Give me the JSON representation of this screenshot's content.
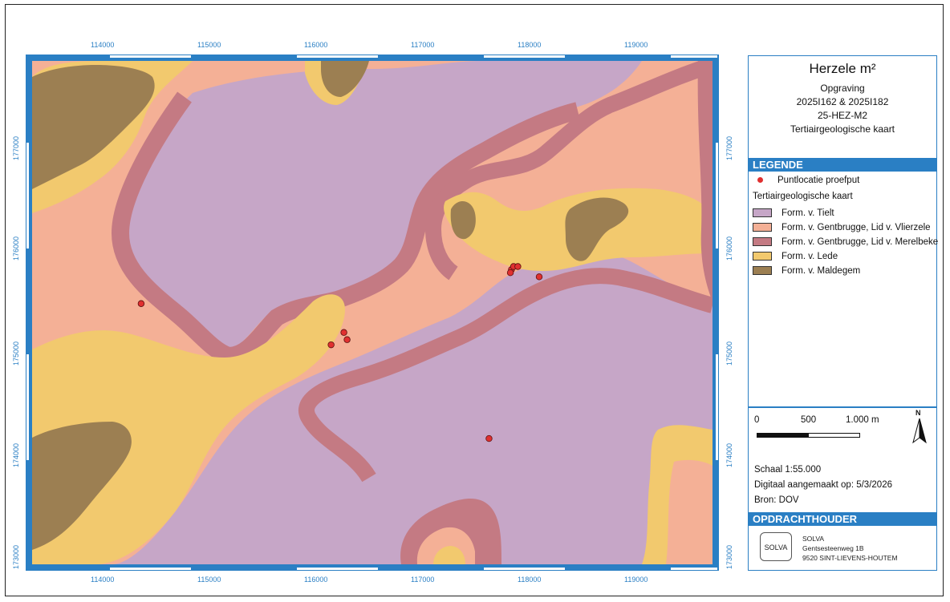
{
  "map_title": "Herzele m²",
  "subtitle_lines": [
    "Opgraving",
    "2025I162 & 2025I182",
    "25-HEZ-M2",
    "Tertiairgeologische kaart"
  ],
  "legend_header": "LEGENDE",
  "point_label": "Puntlocatie proefput",
  "group_label": "Tertiairgeologische kaart",
  "legend_items": [
    {
      "label": "Form. v. Tielt",
      "color": "#c6a6c7"
    },
    {
      "label": "Form. v. Gentbrugge, Lid v. Vlierzele",
      "color": "#f4b096"
    },
    {
      "label": "Form. v. Gentbrugge, Lid v. Merelbeke",
      "color": "#c47a83"
    },
    {
      "label": "Form. v. Lede",
      "color": "#f2c96e"
    },
    {
      "label": "Form. v. Maldegem",
      "color": "#9c7f52"
    }
  ],
  "point_color": "#e03030",
  "x_ticks": [
    "114000",
    "115000",
    "116000",
    "117000",
    "118000",
    "119000"
  ],
  "y_ticks": [
    "177000",
    "176000",
    "175000",
    "174000",
    "173000"
  ],
  "scale_labels": [
    "0",
    "500",
    "1.000 m"
  ],
  "north_label": "N",
  "scale_text": "Schaal  1:55.000",
  "date_text": "Digitaal aangemaakt op: 5/3/2026",
  "source_text": "Bron: DOV",
  "client_header": "OPDRACHTHOUDER",
  "logo_text": "SOLVA",
  "address_lines": [
    "SOLVA",
    "Gentsesteenweg 1B",
    "9520 SINT-LIEVENS-HOUTEM"
  ],
  "survey_points": [
    {
      "x": 114300,
      "y": 175500
    },
    {
      "x": 116080,
      "y": 175100
    },
    {
      "x": 116200,
      "y": 175220
    },
    {
      "x": 116230,
      "y": 175150
    },
    {
      "x": 117770,
      "y": 175830
    },
    {
      "x": 117790,
      "y": 175860
    },
    {
      "x": 117830,
      "y": 175860
    },
    {
      "x": 117760,
      "y": 175800
    },
    {
      "x": 118030,
      "y": 175760
    },
    {
      "x": 117560,
      "y": 174190
    }
  ]
}
